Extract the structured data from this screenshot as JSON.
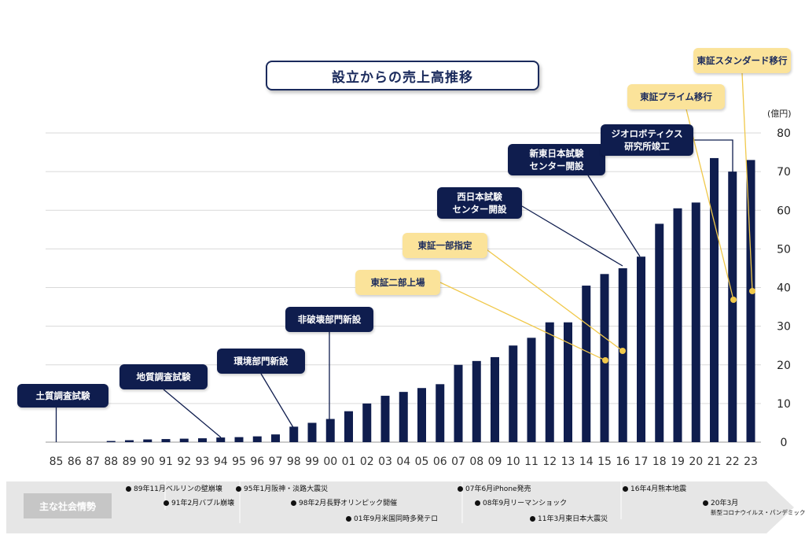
{
  "title": "設立からの売上高推移",
  "unit": "(億円)",
  "chart_data": {
    "type": "bar",
    "title": "設立からの売上高推移",
    "ylabel": "(億円)",
    "ylim": [
      0,
      80
    ],
    "yticks": [
      0,
      10,
      20,
      30,
      40,
      50,
      60,
      70,
      80
    ],
    "grid": true,
    "categories": [
      "85",
      "86",
      "87",
      "88",
      "89",
      "90",
      "91",
      "92",
      "93",
      "94",
      "95",
      "96",
      "97",
      "98",
      "99",
      "00",
      "01",
      "02",
      "03",
      "04",
      "05",
      "06",
      "07",
      "08",
      "09",
      "10",
      "11",
      "12",
      "13",
      "14",
      "15",
      "16",
      "17",
      "18",
      "19",
      "20",
      "21",
      "22",
      "23"
    ],
    "values": [
      0,
      0,
      0,
      0.3,
      0.5,
      0.7,
      0.8,
      0.9,
      1.0,
      1.2,
      1.3,
      1.5,
      2.0,
      4.0,
      5.0,
      6.0,
      8.0,
      10.0,
      12.0,
      13.0,
      14.0,
      15.0,
      20.0,
      21.0,
      22.0,
      25.0,
      27.0,
      31.0,
      31.0,
      40.5,
      43.5,
      45.0,
      48.0,
      56.5,
      60.5,
      62.0,
      73.5,
      70.0,
      73.0
    ],
    "bar_color": "#0f1d4e"
  },
  "callouts": [
    {
      "lines": [
        "土質調査試験"
      ],
      "style": "navy"
    },
    {
      "lines": [
        "地質調査試験"
      ],
      "style": "navy"
    },
    {
      "lines": [
        "環境部門新設"
      ],
      "style": "navy"
    },
    {
      "lines": [
        "非破壊部門新設"
      ],
      "style": "navy"
    },
    {
      "lines": [
        "東証二部上場"
      ],
      "style": "yellow"
    },
    {
      "lines": [
        "東証一部指定"
      ],
      "style": "yellow"
    },
    {
      "lines": [
        "西日本試験",
        "センター開設"
      ],
      "style": "navy"
    },
    {
      "lines": [
        "新東日本試験",
        "センター開設"
      ],
      "style": "navy"
    },
    {
      "lines": [
        "ジオロボティクス",
        "研究所竣工"
      ],
      "style": "navy"
    },
    {
      "lines": [
        "東証プライム移行"
      ],
      "style": "yellow"
    },
    {
      "lines": [
        "東証スタンダード移行"
      ],
      "style": "yellow"
    }
  ],
  "timeline": {
    "label": "主な社会情勢",
    "events": [
      {
        "text": "89年11月ベルリンの壁崩壊"
      },
      {
        "text": "91年2月バブル崩壊"
      },
      {
        "text": "95年1月阪神・淡路大震災"
      },
      {
        "text": "98年2月長野オリンピック開催"
      },
      {
        "text": "01年9月米国同時多発テロ"
      },
      {
        "text": "07年6月iPhone発売"
      },
      {
        "text": "08年9月リーマンショック"
      },
      {
        "text": "11年3月東日本大震災"
      },
      {
        "text": "16年4月熊本地震"
      },
      {
        "text": "20年3月",
        "sub": "新型コロナウイルス・パンデミック"
      }
    ]
  },
  "colors": {
    "navy": "#0f1d4e",
    "yellow_box": "#fbe39a",
    "yellow_line": "#f0c84a",
    "grid": "#d9d9d9",
    "band": "#e6e6e6"
  }
}
